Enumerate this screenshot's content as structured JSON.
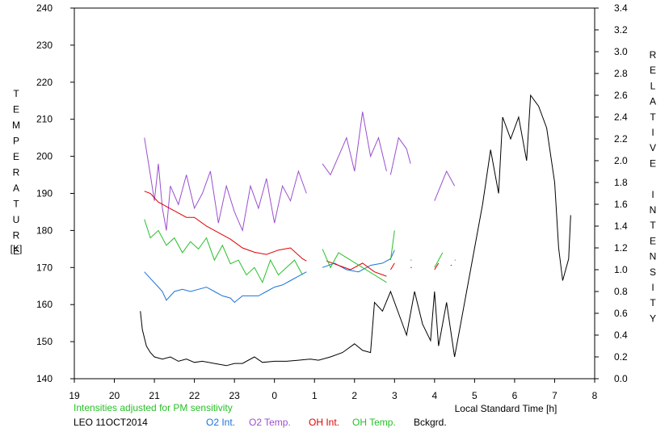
{
  "chart_data": {
    "type": "line",
    "left_axis_label": "TEMPERATURE",
    "left_axis_unit": "[K]",
    "right_axis_label": "RELATIVE INTENSITY",
    "xlabel": "Local Standard Time [h]",
    "note": "Intensities adjusted for PM sensitivity",
    "station_date": "LEO 11OCT2014",
    "x_ticks": [
      "19",
      "20",
      "21",
      "22",
      "23",
      "0",
      "1",
      "2",
      "3",
      "4",
      "5",
      "6",
      "7",
      "8"
    ],
    "xlim": [
      19,
      32
    ],
    "ylim_left": [
      140,
      240
    ],
    "y_ticks_left": [
      "140",
      "150",
      "160",
      "170",
      "180",
      "190",
      "200",
      "210",
      "220",
      "230",
      "240"
    ],
    "ylim_right": [
      0,
      3.4
    ],
    "y_ticks_right": [
      "0.0",
      "0.2",
      "0.4",
      "0.6",
      "0.8",
      "1.0",
      "1.2",
      "1.4",
      "1.6",
      "1.8",
      "2.0",
      "2.2",
      "2.4",
      "2.6",
      "2.8",
      "3.0",
      "3.2",
      "3.4"
    ],
    "colors": {
      "o2_int": "#1b72d8",
      "o2_temp": "#9a4fd0",
      "oh_int": "#e00000",
      "oh_temp": "#27c028",
      "bckgrd": "#000000",
      "note": "#27c028"
    },
    "series": [
      {
        "name": "O2 Int.",
        "color": "#1b72d8",
        "axis": "right",
        "segments": [
          [
            [
              20.75,
              0.98
            ],
            [
              20.9,
              0.92
            ],
            [
              21.05,
              0.86
            ],
            [
              21.2,
              0.8
            ],
            [
              21.3,
              0.72
            ],
            [
              21.5,
              0.8
            ],
            [
              21.7,
              0.82
            ],
            [
              21.9,
              0.8
            ],
            [
              22.1,
              0.82
            ],
            [
              22.3,
              0.84
            ],
            [
              22.5,
              0.8
            ],
            [
              22.7,
              0.76
            ],
            [
              22.9,
              0.74
            ],
            [
              23.0,
              0.7
            ],
            [
              23.2,
              0.76
            ],
            [
              23.4,
              0.76
            ],
            [
              23.6,
              0.76
            ],
            [
              23.8,
              0.8
            ],
            [
              24.0,
              0.84
            ],
            [
              24.2,
              0.86
            ],
            [
              24.4,
              0.9
            ],
            [
              24.6,
              0.94
            ],
            [
              24.8,
              0.98
            ]
          ],
          [
            [
              25.2,
              1.02
            ],
            [
              25.5,
              1.06
            ],
            [
              25.8,
              1.0
            ],
            [
              26.1,
              0.98
            ],
            [
              26.4,
              1.04
            ],
            [
              26.7,
              1.06
            ],
            [
              26.9,
              1.1
            ],
            [
              27.0,
              1.18
            ]
          ]
        ]
      },
      {
        "name": "O2 Temp.",
        "color": "#9a4fd0",
        "axis": "left",
        "segments": [
          [
            [
              20.75,
              205
            ],
            [
              20.9,
              195
            ],
            [
              21.0,
              188
            ],
            [
              21.1,
              198
            ],
            [
              21.2,
              186
            ],
            [
              21.3,
              180
            ],
            [
              21.4,
              192
            ],
            [
              21.6,
              187
            ],
            [
              21.8,
              195
            ],
            [
              22.0,
              186
            ],
            [
              22.2,
              190
            ],
            [
              22.4,
              196
            ],
            [
              22.6,
              182
            ],
            [
              22.8,
              192
            ],
            [
              23.0,
              185
            ],
            [
              23.2,
              180
            ],
            [
              23.4,
              192
            ],
            [
              23.6,
              186
            ],
            [
              23.8,
              194
            ],
            [
              24.0,
              182
            ],
            [
              24.2,
              192
            ],
            [
              24.4,
              188
            ],
            [
              24.6,
              196
            ],
            [
              24.8,
              190
            ]
          ],
          [
            [
              25.2,
              198
            ],
            [
              25.4,
              195
            ],
            [
              25.6,
              200
            ],
            [
              25.8,
              205
            ],
            [
              26.0,
              196
            ],
            [
              26.2,
              212
            ],
            [
              26.4,
              200
            ],
            [
              26.6,
              205
            ],
            [
              26.8,
              196
            ]
          ],
          [
            [
              26.9,
              195
            ],
            [
              27.1,
              205
            ],
            [
              27.3,
              202
            ],
            [
              27.4,
              198
            ]
          ],
          [
            [
              28.0,
              188
            ],
            [
              28.3,
              196
            ],
            [
              28.5,
              192
            ]
          ]
        ]
      },
      {
        "name": "OH Int.",
        "color": "#e00000",
        "axis": "right",
        "segments": [
          [
            [
              20.75,
              1.72
            ],
            [
              20.9,
              1.7
            ],
            [
              21.1,
              1.62
            ],
            [
              21.3,
              1.58
            ],
            [
              21.5,
              1.54
            ],
            [
              21.8,
              1.48
            ],
            [
              22.0,
              1.48
            ],
            [
              22.3,
              1.4
            ],
            [
              22.6,
              1.34
            ],
            [
              22.9,
              1.28
            ],
            [
              23.2,
              1.2
            ],
            [
              23.5,
              1.16
            ],
            [
              23.8,
              1.14
            ],
            [
              24.1,
              1.18
            ],
            [
              24.4,
              1.2
            ],
            [
              24.7,
              1.1
            ],
            [
              24.8,
              1.08
            ]
          ],
          [
            [
              25.3,
              1.08
            ],
            [
              25.6,
              1.04
            ],
            [
              25.9,
              1.0
            ],
            [
              26.2,
              1.06
            ],
            [
              26.5,
              0.98
            ],
            [
              26.8,
              0.94
            ]
          ],
          [
            [
              26.9,
              1.0
            ],
            [
              27.0,
              1.06
            ]
          ],
          [
            [
              27.4,
              1.02
            ]
          ],
          [
            [
              28.0,
              1.0
            ],
            [
              28.1,
              1.06
            ]
          ],
          [
            [
              28.4,
              1.04
            ]
          ]
        ]
      },
      {
        "name": "OH Temp.",
        "color": "#27c028",
        "axis": "left",
        "segments": [
          [
            [
              20.75,
              183
            ],
            [
              20.9,
              178
            ],
            [
              21.1,
              180
            ],
            [
              21.3,
              176
            ],
            [
              21.5,
              178
            ],
            [
              21.7,
              174
            ],
            [
              21.9,
              177
            ],
            [
              22.1,
              175
            ],
            [
              22.3,
              178
            ],
            [
              22.5,
              172
            ],
            [
              22.7,
              176
            ],
            [
              22.9,
              171
            ],
            [
              23.1,
              172
            ],
            [
              23.3,
              168
            ],
            [
              23.5,
              170
            ],
            [
              23.7,
              166
            ],
            [
              23.9,
              172
            ],
            [
              24.1,
              168
            ],
            [
              24.3,
              170
            ],
            [
              24.5,
              172
            ],
            [
              24.7,
              168
            ]
          ],
          [
            [
              25.2,
              175
            ],
            [
              25.4,
              170
            ],
            [
              25.6,
              174
            ],
            [
              25.9,
              172
            ],
            [
              26.2,
              170
            ],
            [
              26.5,
              168
            ],
            [
              26.8,
              166
            ]
          ],
          [
            [
              26.9,
              172
            ],
            [
              27.0,
              180
            ]
          ],
          [
            [
              27.4,
              172
            ]
          ],
          [
            [
              28.0,
              170
            ],
            [
              28.2,
              174
            ]
          ],
          [
            [
              28.5,
              172
            ]
          ]
        ]
      },
      {
        "name": "Bckgrd.",
        "color": "#000000",
        "axis": "right",
        "segments": [
          [
            [
              20.65,
              0.62
            ],
            [
              20.7,
              0.45
            ],
            [
              20.8,
              0.3
            ],
            [
              20.9,
              0.24
            ],
            [
              21.0,
              0.2
            ],
            [
              21.2,
              0.18
            ],
            [
              21.4,
              0.2
            ],
            [
              21.6,
              0.16
            ],
            [
              21.8,
              0.18
            ],
            [
              22.0,
              0.15
            ],
            [
              22.2,
              0.16
            ],
            [
              22.5,
              0.14
            ],
            [
              22.8,
              0.12
            ],
            [
              23.0,
              0.14
            ],
            [
              23.2,
              0.14
            ],
            [
              23.5,
              0.2
            ],
            [
              23.7,
              0.15
            ],
            [
              24.0,
              0.16
            ],
            [
              24.3,
              0.16
            ],
            [
              24.6,
              0.17
            ],
            [
              24.9,
              0.18
            ],
            [
              25.1,
              0.17
            ],
            [
              25.4,
              0.2
            ],
            [
              25.7,
              0.24
            ],
            [
              26.0,
              0.32
            ],
            [
              26.2,
              0.26
            ],
            [
              26.4,
              0.24
            ],
            [
              26.5,
              0.7
            ],
            [
              26.7,
              0.62
            ],
            [
              26.9,
              0.8
            ],
            [
              27.1,
              0.6
            ],
            [
              27.3,
              0.4
            ],
            [
              27.5,
              0.8
            ],
            [
              27.7,
              0.5
            ],
            [
              27.9,
              0.35
            ],
            [
              28.0,
              0.8
            ],
            [
              28.1,
              0.3
            ],
            [
              28.3,
              0.7
            ],
            [
              28.5,
              0.2
            ],
            [
              28.6,
              0.4
            ],
            [
              28.8,
              0.8
            ],
            [
              29.0,
              1.2
            ],
            [
              29.2,
              1.6
            ],
            [
              29.4,
              2.1
            ],
            [
              29.6,
              1.7
            ],
            [
              29.7,
              2.4
            ],
            [
              29.9,
              2.2
            ],
            [
              30.1,
              2.4
            ],
            [
              30.3,
              2.0
            ],
            [
              30.4,
              2.6
            ],
            [
              30.6,
              2.5
            ],
            [
              30.8,
              2.3
            ],
            [
              31.0,
              1.8
            ],
            [
              31.1,
              1.2
            ],
            [
              31.2,
              0.9
            ],
            [
              31.35,
              1.1
            ],
            [
              31.4,
              1.5
            ]
          ]
        ]
      }
    ]
  }
}
